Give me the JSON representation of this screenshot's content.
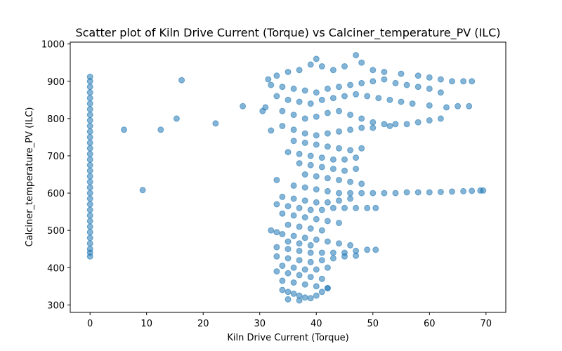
{
  "chart_data": {
    "type": "scatter",
    "title": "Scatter plot of Kiln Drive Current (Torque) vs Calciner_temperature_PV (ILC)",
    "xlabel": "Kiln Drive Current (Torque)",
    "ylabel": "Calciner_temperature_PV (ILC)",
    "xlim": [
      -3.5,
      73.5
    ],
    "ylim": [
      280,
      1005
    ],
    "xticks": [
      0,
      10,
      20,
      30,
      40,
      50,
      60,
      70
    ],
    "yticks": [
      300,
      400,
      500,
      600,
      700,
      800,
      900,
      1000
    ],
    "grid": false,
    "legend": "none",
    "color": "#1f77b4",
    "alpha": 0.55,
    "points": [
      {
        "x": 0,
        "y": 912
      },
      {
        "x": 0,
        "y": 900
      },
      {
        "x": 0,
        "y": 885
      },
      {
        "x": 0,
        "y": 870
      },
      {
        "x": 0,
        "y": 855
      },
      {
        "x": 0,
        "y": 840
      },
      {
        "x": 0,
        "y": 825
      },
      {
        "x": 0,
        "y": 810
      },
      {
        "x": 0,
        "y": 795
      },
      {
        "x": 0,
        "y": 780
      },
      {
        "x": 0,
        "y": 765
      },
      {
        "x": 0,
        "y": 750
      },
      {
        "x": 0,
        "y": 735
      },
      {
        "x": 0,
        "y": 720
      },
      {
        "x": 0,
        "y": 705
      },
      {
        "x": 0,
        "y": 690
      },
      {
        "x": 0,
        "y": 675
      },
      {
        "x": 0,
        "y": 660
      },
      {
        "x": 0,
        "y": 645
      },
      {
        "x": 0,
        "y": 630
      },
      {
        "x": 0,
        "y": 615
      },
      {
        "x": 0,
        "y": 600
      },
      {
        "x": 0,
        "y": 585
      },
      {
        "x": 0,
        "y": 570
      },
      {
        "x": 0,
        "y": 555
      },
      {
        "x": 0,
        "y": 540
      },
      {
        "x": 0,
        "y": 525
      },
      {
        "x": 0,
        "y": 510
      },
      {
        "x": 0,
        "y": 495
      },
      {
        "x": 0,
        "y": 480
      },
      {
        "x": 0,
        "y": 465
      },
      {
        "x": 0,
        "y": 450
      },
      {
        "x": 0,
        "y": 440
      },
      {
        "x": 0,
        "y": 430
      },
      {
        "x": 6,
        "y": 770
      },
      {
        "x": 9.3,
        "y": 608
      },
      {
        "x": 12.5,
        "y": 770
      },
      {
        "x": 15.3,
        "y": 800
      },
      {
        "x": 16.2,
        "y": 903
      },
      {
        "x": 22.2,
        "y": 787
      },
      {
        "x": 27,
        "y": 833
      },
      {
        "x": 30.5,
        "y": 820
      },
      {
        "x": 31,
        "y": 830
      },
      {
        "x": 32,
        "y": 768
      },
      {
        "x": 33,
        "y": 635
      },
      {
        "x": 31.5,
        "y": 905
      },
      {
        "x": 33,
        "y": 915
      },
      {
        "x": 35,
        "y": 925
      },
      {
        "x": 37,
        "y": 930
      },
      {
        "x": 39,
        "y": 945
      },
      {
        "x": 40,
        "y": 960
      },
      {
        "x": 41,
        "y": 940
      },
      {
        "x": 43,
        "y": 930
      },
      {
        "x": 45,
        "y": 940
      },
      {
        "x": 47,
        "y": 970
      },
      {
        "x": 48,
        "y": 950
      },
      {
        "x": 50,
        "y": 930
      },
      {
        "x": 52,
        "y": 925
      },
      {
        "x": 55,
        "y": 920
      },
      {
        "x": 58,
        "y": 915
      },
      {
        "x": 60,
        "y": 910
      },
      {
        "x": 62,
        "y": 905
      },
      {
        "x": 64,
        "y": 900
      },
      {
        "x": 66,
        "y": 900
      },
      {
        "x": 67.5,
        "y": 900
      },
      {
        "x": 32,
        "y": 890
      },
      {
        "x": 34,
        "y": 885
      },
      {
        "x": 36,
        "y": 880
      },
      {
        "x": 38,
        "y": 875
      },
      {
        "x": 40,
        "y": 870
      },
      {
        "x": 42,
        "y": 880
      },
      {
        "x": 44,
        "y": 885
      },
      {
        "x": 46,
        "y": 890
      },
      {
        "x": 48,
        "y": 895
      },
      {
        "x": 50,
        "y": 900
      },
      {
        "x": 52,
        "y": 905
      },
      {
        "x": 54,
        "y": 895
      },
      {
        "x": 56,
        "y": 890
      },
      {
        "x": 58,
        "y": 885
      },
      {
        "x": 60,
        "y": 880
      },
      {
        "x": 62,
        "y": 870
      },
      {
        "x": 33,
        "y": 860
      },
      {
        "x": 35,
        "y": 850
      },
      {
        "x": 37,
        "y": 845
      },
      {
        "x": 39,
        "y": 840
      },
      {
        "x": 41,
        "y": 850
      },
      {
        "x": 43,
        "y": 855
      },
      {
        "x": 45,
        "y": 860
      },
      {
        "x": 47,
        "y": 865
      },
      {
        "x": 49,
        "y": 860
      },
      {
        "x": 51,
        "y": 855
      },
      {
        "x": 53,
        "y": 850
      },
      {
        "x": 55,
        "y": 845
      },
      {
        "x": 57,
        "y": 840
      },
      {
        "x": 60,
        "y": 835
      },
      {
        "x": 63,
        "y": 830
      },
      {
        "x": 65,
        "y": 833
      },
      {
        "x": 67,
        "y": 833
      },
      {
        "x": 34,
        "y": 820
      },
      {
        "x": 36,
        "y": 810
      },
      {
        "x": 38,
        "y": 800
      },
      {
        "x": 40,
        "y": 805
      },
      {
        "x": 42,
        "y": 815
      },
      {
        "x": 44,
        "y": 820
      },
      {
        "x": 46,
        "y": 810
      },
      {
        "x": 48,
        "y": 800
      },
      {
        "x": 50,
        "y": 790
      },
      {
        "x": 52,
        "y": 785
      },
      {
        "x": 54,
        "y": 785
      },
      {
        "x": 56,
        "y": 785
      },
      {
        "x": 58,
        "y": 790
      },
      {
        "x": 60,
        "y": 795
      },
      {
        "x": 62,
        "y": 800
      },
      {
        "x": 34,
        "y": 780
      },
      {
        "x": 36,
        "y": 770
      },
      {
        "x": 38,
        "y": 760
      },
      {
        "x": 40,
        "y": 755
      },
      {
        "x": 42,
        "y": 760
      },
      {
        "x": 44,
        "y": 765
      },
      {
        "x": 46,
        "y": 770
      },
      {
        "x": 48,
        "y": 775
      },
      {
        "x": 50,
        "y": 775
      },
      {
        "x": 53,
        "y": 780
      },
      {
        "x": 36,
        "y": 740
      },
      {
        "x": 38,
        "y": 735
      },
      {
        "x": 40,
        "y": 730
      },
      {
        "x": 42,
        "y": 725
      },
      {
        "x": 44,
        "y": 720
      },
      {
        "x": 46,
        "y": 715
      },
      {
        "x": 48,
        "y": 720
      },
      {
        "x": 35,
        "y": 710
      },
      {
        "x": 37,
        "y": 705
      },
      {
        "x": 39,
        "y": 700
      },
      {
        "x": 41,
        "y": 695
      },
      {
        "x": 43,
        "y": 690
      },
      {
        "x": 45,
        "y": 690
      },
      {
        "x": 47,
        "y": 695
      },
      {
        "x": 37,
        "y": 680
      },
      {
        "x": 39,
        "y": 675
      },
      {
        "x": 41,
        "y": 670
      },
      {
        "x": 43,
        "y": 665
      },
      {
        "x": 45,
        "y": 660
      },
      {
        "x": 47,
        "y": 665
      },
      {
        "x": 38,
        "y": 650
      },
      {
        "x": 40,
        "y": 645
      },
      {
        "x": 42,
        "y": 640
      },
      {
        "x": 44,
        "y": 635
      },
      {
        "x": 46,
        "y": 630
      },
      {
        "x": 48,
        "y": 625
      },
      {
        "x": 36,
        "y": 620
      },
      {
        "x": 38,
        "y": 615
      },
      {
        "x": 40,
        "y": 610
      },
      {
        "x": 42,
        "y": 605
      },
      {
        "x": 44,
        "y": 600
      },
      {
        "x": 46,
        "y": 600
      },
      {
        "x": 48,
        "y": 600
      },
      {
        "x": 50,
        "y": 600
      },
      {
        "x": 52,
        "y": 600
      },
      {
        "x": 54,
        "y": 600
      },
      {
        "x": 56,
        "y": 602
      },
      {
        "x": 58,
        "y": 602
      },
      {
        "x": 60,
        "y": 602
      },
      {
        "x": 62,
        "y": 603
      },
      {
        "x": 64,
        "y": 604
      },
      {
        "x": 66,
        "y": 605
      },
      {
        "x": 67.5,
        "y": 606
      },
      {
        "x": 69,
        "y": 607
      },
      {
        "x": 69.5,
        "y": 607
      },
      {
        "x": 34,
        "y": 590
      },
      {
        "x": 36,
        "y": 585
      },
      {
        "x": 38,
        "y": 580
      },
      {
        "x": 40,
        "y": 575
      },
      {
        "x": 42,
        "y": 575
      },
      {
        "x": 44,
        "y": 580
      },
      {
        "x": 46,
        "y": 585
      },
      {
        "x": 33,
        "y": 570
      },
      {
        "x": 35,
        "y": 565
      },
      {
        "x": 37,
        "y": 560
      },
      {
        "x": 39,
        "y": 555
      },
      {
        "x": 41,
        "y": 555
      },
      {
        "x": 43,
        "y": 560
      },
      {
        "x": 45,
        "y": 560
      },
      {
        "x": 47,
        "y": 560
      },
      {
        "x": 49,
        "y": 560
      },
      {
        "x": 50.5,
        "y": 560
      },
      {
        "x": 34,
        "y": 545
      },
      {
        "x": 36,
        "y": 540
      },
      {
        "x": 38,
        "y": 535
      },
      {
        "x": 40,
        "y": 530
      },
      {
        "x": 42,
        "y": 525
      },
      {
        "x": 44,
        "y": 520
      },
      {
        "x": 35,
        "y": 515
      },
      {
        "x": 37,
        "y": 510
      },
      {
        "x": 39,
        "y": 505
      },
      {
        "x": 41,
        "y": 500
      },
      {
        "x": 32,
        "y": 500
      },
      {
        "x": 33,
        "y": 495
      },
      {
        "x": 34,
        "y": 490
      },
      {
        "x": 36,
        "y": 485
      },
      {
        "x": 38,
        "y": 480
      },
      {
        "x": 40,
        "y": 475
      },
      {
        "x": 42,
        "y": 470
      },
      {
        "x": 44,
        "y": 465
      },
      {
        "x": 46,
        "y": 460
      },
      {
        "x": 35,
        "y": 470
      },
      {
        "x": 37,
        "y": 465
      },
      {
        "x": 39,
        "y": 460
      },
      {
        "x": 33,
        "y": 455
      },
      {
        "x": 35,
        "y": 450
      },
      {
        "x": 37,
        "y": 445
      },
      {
        "x": 39,
        "y": 440
      },
      {
        "x": 41,
        "y": 440
      },
      {
        "x": 43,
        "y": 440
      },
      {
        "x": 45,
        "y": 440
      },
      {
        "x": 47,
        "y": 445
      },
      {
        "x": 49,
        "y": 448
      },
      {
        "x": 50.5,
        "y": 448
      },
      {
        "x": 33,
        "y": 430
      },
      {
        "x": 35,
        "y": 425
      },
      {
        "x": 37,
        "y": 420
      },
      {
        "x": 39,
        "y": 415
      },
      {
        "x": 41,
        "y": 420
      },
      {
        "x": 43,
        "y": 425
      },
      {
        "x": 45,
        "y": 430
      },
      {
        "x": 47,
        "y": 432
      },
      {
        "x": 34,
        "y": 405
      },
      {
        "x": 36,
        "y": 400
      },
      {
        "x": 38,
        "y": 395
      },
      {
        "x": 40,
        "y": 395
      },
      {
        "x": 42,
        "y": 400
      },
      {
        "x": 33,
        "y": 390
      },
      {
        "x": 35,
        "y": 385
      },
      {
        "x": 37,
        "y": 380
      },
      {
        "x": 39,
        "y": 375
      },
      {
        "x": 41,
        "y": 370
      },
      {
        "x": 34,
        "y": 365
      },
      {
        "x": 36,
        "y": 360
      },
      {
        "x": 38,
        "y": 355
      },
      {
        "x": 40,
        "y": 350
      },
      {
        "x": 42,
        "y": 345
      },
      {
        "x": 34,
        "y": 340
      },
      {
        "x": 35,
        "y": 335
      },
      {
        "x": 36,
        "y": 330
      },
      {
        "x": 37,
        "y": 325
      },
      {
        "x": 38,
        "y": 320
      },
      {
        "x": 39,
        "y": 318
      },
      {
        "x": 40,
        "y": 325
      },
      {
        "x": 41,
        "y": 335
      },
      {
        "x": 42,
        "y": 345
      },
      {
        "x": 35,
        "y": 315
      },
      {
        "x": 37,
        "y": 312
      }
    ]
  }
}
